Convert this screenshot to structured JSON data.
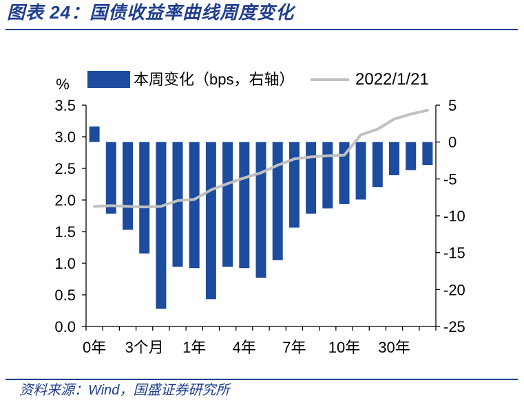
{
  "caption": "图表 24：国债收益率曲线周度变化",
  "source": "资料来源：Wind，国盛证券研究所",
  "colors": {
    "accent": "#1f3e8f",
    "axis": "#000000"
  },
  "chart_data": {
    "type": "bar",
    "categories": [
      "0年",
      "",
      "",
      "3个月",
      "",
      "",
      "1年",
      "",
      "",
      "4年",
      "",
      "",
      "7年",
      "",
      "",
      "10年",
      "",
      "",
      "30年",
      "",
      ""
    ],
    "series": [
      {
        "name": "本周变化（bps，右轴）",
        "type": "bar",
        "axis": "right",
        "color": "#1d4c9e",
        "values": [
          2.1,
          -9.7,
          -11.9,
          -15.1,
          -22.6,
          -16.9,
          -17.1,
          -21.3,
          -16.9,
          -17.1,
          -18.4,
          -16.0,
          -11.6,
          -9.7,
          -9.0,
          -8.4,
          -7.8,
          -6.1,
          -4.5,
          -3.8,
          -3.1
        ]
      },
      {
        "name": "2022/1/21",
        "type": "line",
        "axis": "left",
        "color": "#c0c0c0",
        "values": [
          1.9,
          1.91,
          1.9,
          1.89,
          1.9,
          1.99,
          2.01,
          2.16,
          2.26,
          2.35,
          2.43,
          2.55,
          2.65,
          2.68,
          2.7,
          2.71,
          3.03,
          3.12,
          3.28,
          3.36,
          3.42
        ]
      }
    ],
    "ylabel": "%",
    "ylim": [
      0,
      3.5
    ],
    "yticks": [
      "0.0",
      "0.5",
      "1.0",
      "1.5",
      "2.0",
      "2.5",
      "3.0",
      "3.5"
    ],
    "y2lim": [
      -25,
      5
    ],
    "y2ticks": [
      "-25",
      "-20",
      "-15",
      "-10",
      "-5",
      "0",
      "5"
    ],
    "grid": false,
    "legend": "top"
  }
}
